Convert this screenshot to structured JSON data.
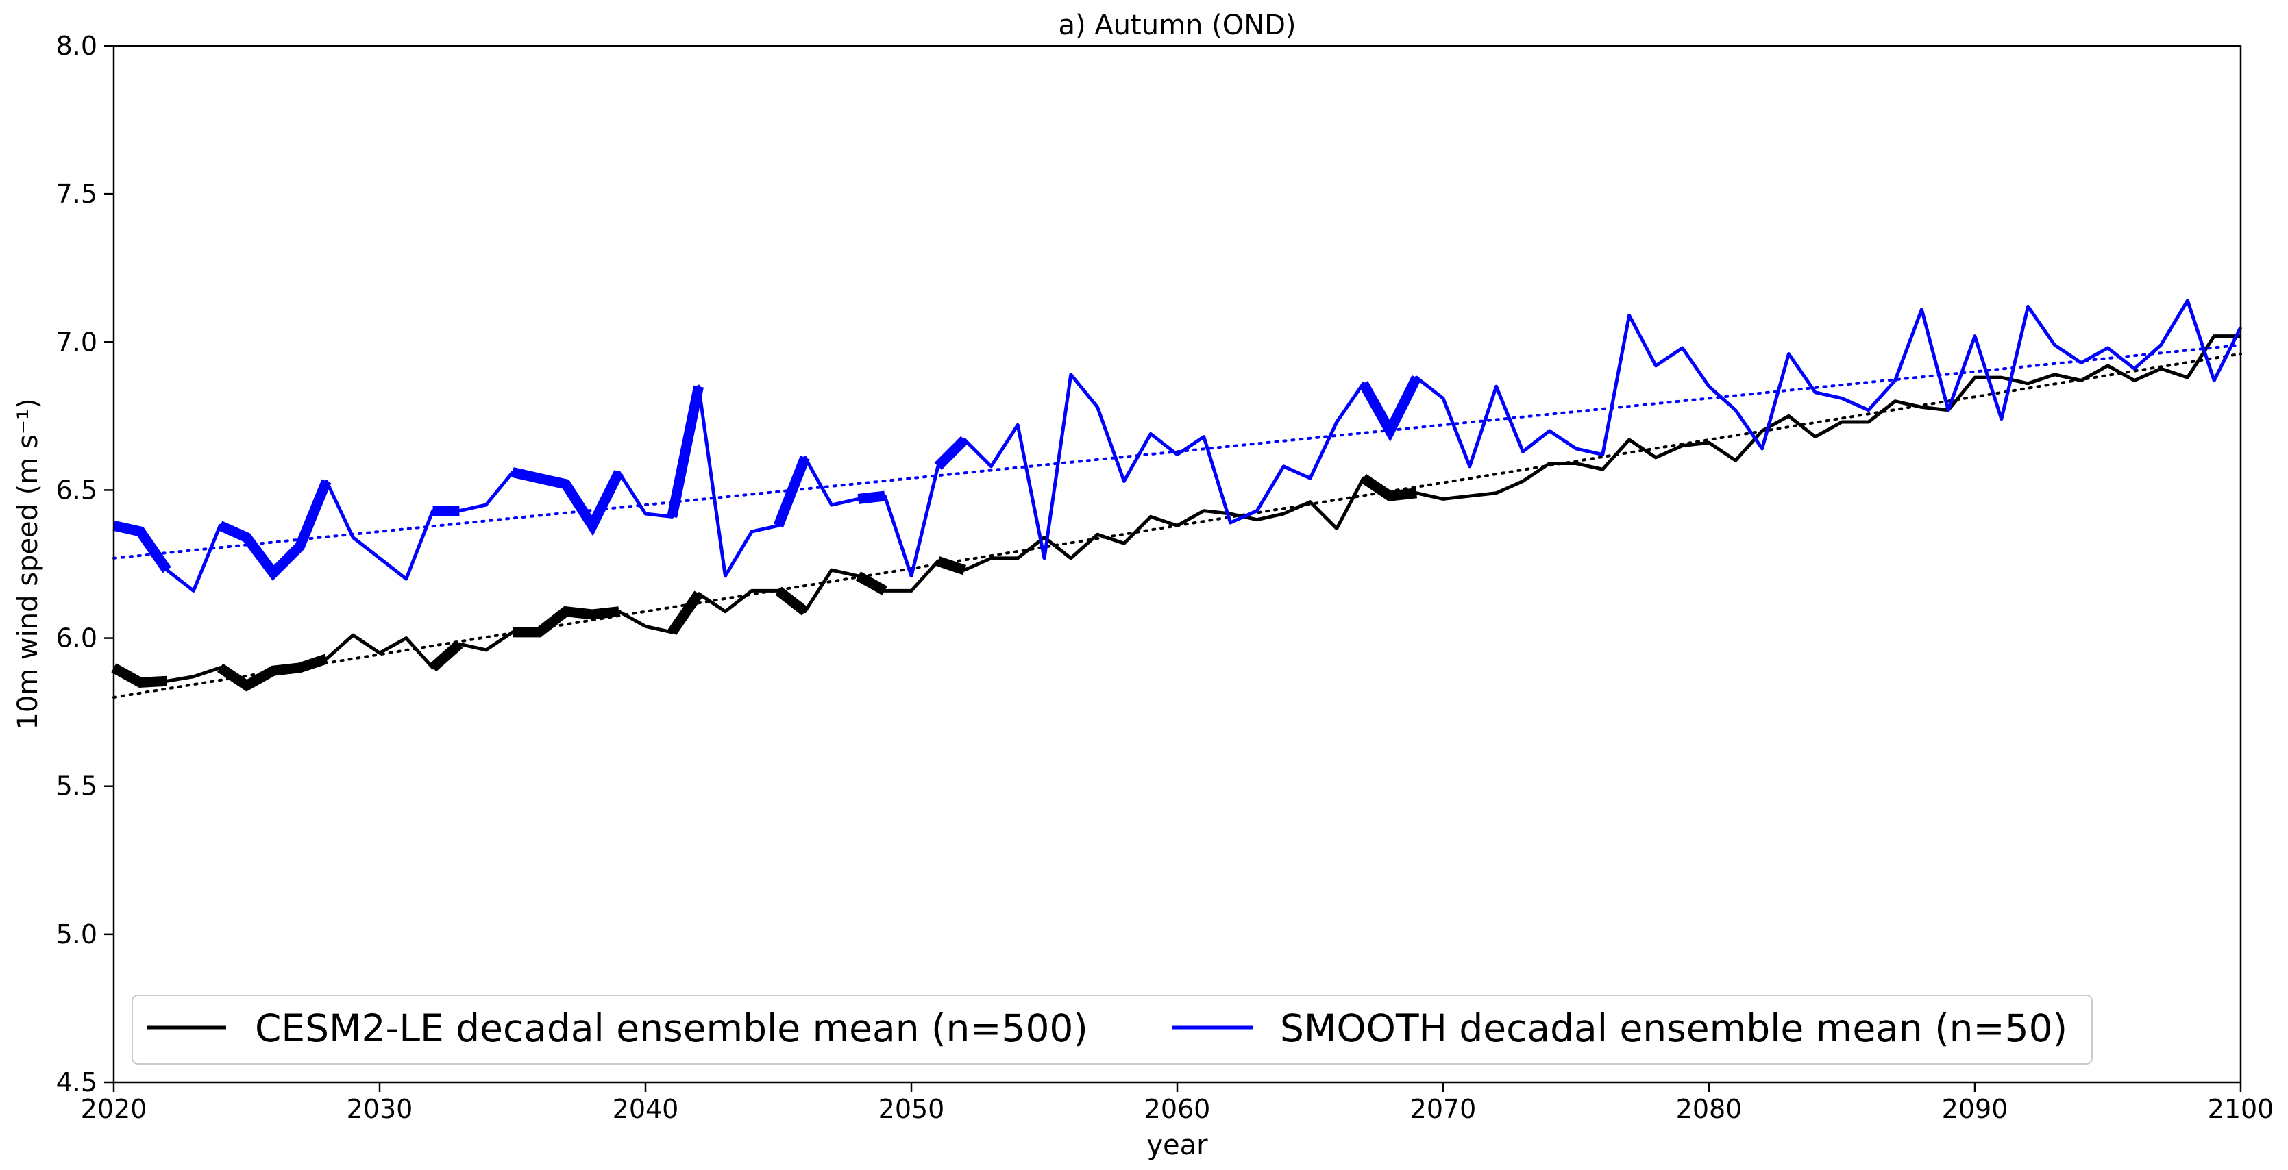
{
  "chart_data": {
    "type": "line",
    "title": "a) Autumn (OND)",
    "xlabel": "year",
    "ylabel": "10m wind speed (m s⁻¹)",
    "xlim": [
      2020,
      2100
    ],
    "ylim": [
      4.5,
      8.0
    ],
    "xticks": [
      2020,
      2030,
      2040,
      2050,
      2060,
      2070,
      2080,
      2090,
      2100
    ],
    "yticks": [
      4.5,
      5.0,
      5.5,
      6.0,
      6.5,
      7.0,
      7.5,
      8.0
    ],
    "grid": false,
    "legend_position": "lower-left",
    "legend": [
      "CESM2-LE decadal ensemble mean (n=500)",
      "SMOOTH decadal ensemble mean (n=50)"
    ],
    "series": [
      {
        "name": "CESM2-LE decadal ensemble mean (n=500)",
        "color": "#000000",
        "x": [
          2020,
          2021,
          2022,
          2023,
          2024,
          2025,
          2026,
          2027,
          2028,
          2029,
          2030,
          2031,
          2032,
          2033,
          2034,
          2035,
          2036,
          2037,
          2038,
          2039,
          2040,
          2041,
          2042,
          2043,
          2044,
          2045,
          2046,
          2047,
          2048,
          2049,
          2050,
          2051,
          2052,
          2053,
          2054,
          2055,
          2056,
          2057,
          2058,
          2059,
          2060,
          2061,
          2062,
          2063,
          2064,
          2065,
          2066,
          2067,
          2068,
          2069,
          2070,
          2071,
          2072,
          2073,
          2074,
          2075,
          2076,
          2077,
          2078,
          2079,
          2080,
          2081,
          2082,
          2083,
          2084,
          2085,
          2086,
          2087,
          2088,
          2089,
          2090,
          2091,
          2092,
          2093,
          2094,
          2095,
          2096,
          2097,
          2098,
          2099,
          2100
        ],
        "y": [
          5.9,
          5.85,
          5.855,
          5.87,
          5.9,
          5.84,
          5.89,
          5.9,
          5.93,
          6.01,
          5.95,
          6.0,
          5.9,
          5.98,
          5.96,
          6.02,
          6.02,
          6.09,
          6.08,
          6.09,
          6.04,
          6.02,
          6.15,
          6.09,
          6.16,
          6.16,
          6.09,
          6.23,
          6.21,
          6.16,
          6.16,
          6.26,
          6.23,
          6.27,
          6.27,
          6.34,
          6.27,
          6.35,
          6.32,
          6.41,
          6.38,
          6.43,
          6.42,
          6.4,
          6.42,
          6.46,
          6.37,
          6.54,
          6.48,
          6.49,
          6.47,
          6.48,
          6.49,
          6.53,
          6.59,
          6.59,
          6.57,
          6.67,
          6.61,
          6.65,
          6.66,
          6.6,
          6.7,
          6.75,
          6.68,
          6.73,
          6.73,
          6.8,
          6.78,
          6.77,
          6.88,
          6.88,
          6.86,
          6.89,
          6.87,
          6.92,
          6.87,
          6.91,
          6.88,
          7.02,
          7.02
        ],
        "trend": [
          5.8,
          6.96
        ],
        "bold_segments": [
          [
            2020,
            2022
          ],
          [
            2024,
            2028
          ],
          [
            2032,
            2033
          ],
          [
            2035,
            2039
          ],
          [
            2041,
            2042
          ],
          [
            2045,
            2046
          ],
          [
            2048,
            2049
          ],
          [
            2051,
            2052
          ],
          [
            2067,
            2069
          ]
        ]
      },
      {
        "name": "SMOOTH decadal ensemble mean (n=50)",
        "color": "#0000ff",
        "x": [
          2020,
          2021,
          2022,
          2023,
          2024,
          2025,
          2026,
          2027,
          2028,
          2029,
          2030,
          2031,
          2032,
          2033,
          2034,
          2035,
          2036,
          2037,
          2038,
          2039,
          2040,
          2041,
          2042,
          2043,
          2044,
          2045,
          2046,
          2047,
          2048,
          2049,
          2050,
          2051,
          2052,
          2053,
          2054,
          2055,
          2056,
          2057,
          2058,
          2059,
          2060,
          2061,
          2062,
          2063,
          2064,
          2065,
          2066,
          2067,
          2068,
          2069,
          2070,
          2071,
          2072,
          2073,
          2074,
          2075,
          2076,
          2077,
          2078,
          2079,
          2080,
          2081,
          2082,
          2083,
          2084,
          2085,
          2086,
          2087,
          2088,
          2089,
          2090,
          2091,
          2092,
          2093,
          2094,
          2095,
          2096,
          2097,
          2098,
          2099,
          2100
        ],
        "y": [
          6.38,
          6.36,
          6.23,
          6.16,
          6.38,
          6.34,
          6.22,
          6.31,
          6.53,
          6.34,
          6.27,
          6.2,
          6.43,
          6.43,
          6.45,
          6.56,
          6.54,
          6.52,
          6.38,
          6.56,
          6.42,
          6.41,
          6.85,
          6.21,
          6.36,
          6.38,
          6.61,
          6.45,
          6.47,
          6.48,
          6.21,
          6.58,
          6.67,
          6.58,
          6.72,
          6.27,
          6.89,
          6.78,
          6.53,
          6.69,
          6.62,
          6.68,
          6.39,
          6.43,
          6.58,
          6.54,
          6.73,
          6.86,
          6.7,
          6.88,
          6.81,
          6.58,
          6.85,
          6.63,
          6.7,
          6.64,
          6.62,
          7.09,
          6.92,
          6.98,
          6.85,
          6.77,
          6.64,
          6.96,
          6.83,
          6.81,
          6.77,
          6.87,
          7.11,
          6.77,
          7.02,
          6.74,
          7.12,
          6.99,
          6.93,
          6.98,
          6.91,
          6.99,
          7.14,
          6.87,
          7.05
        ],
        "trend": [
          6.27,
          6.99
        ],
        "bold_segments": [
          [
            2020,
            2022
          ],
          [
            2024,
            2028
          ],
          [
            2032,
            2033
          ],
          [
            2035,
            2039
          ],
          [
            2041,
            2042
          ],
          [
            2045,
            2046
          ],
          [
            2048,
            2049
          ],
          [
            2051,
            2052
          ],
          [
            2067,
            2069
          ]
        ]
      }
    ]
  }
}
